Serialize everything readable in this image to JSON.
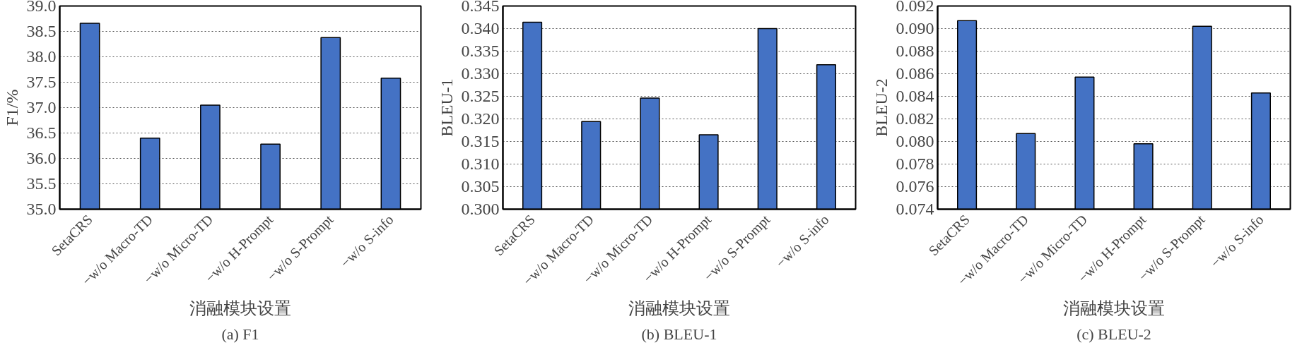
{
  "chart_data": [
    {
      "type": "bar",
      "ylabel": "F1/%",
      "xlabel": "消融模块设置",
      "annotations": [
        "(a) F1"
      ],
      "categories": [
        "SetaCRS",
        "−w/o Macro-TD",
        "−w/o Micro-TD",
        "−w/o H-Prompt",
        "−w/o S-Prompt",
        "−w/o S-info"
      ],
      "values": [
        38.66,
        36.4,
        37.05,
        36.28,
        38.38,
        37.58
      ],
      "color": "#4472c4",
      "ylim": [
        35.0,
        39.0
      ],
      "yticks": [
        {
          "value": 35.0,
          "label": "35.0"
        },
        35.5,
        {
          "value": 36.0,
          "label": "36.0"
        },
        36.5,
        {
          "value": 37.0,
          "label": "37.0"
        },
        37.5,
        {
          "value": 38.0,
          "label": "38.0"
        },
        38.5,
        {
          "value": 39.0,
          "label": "39.0"
        }
      ],
      "grid": "y"
    },
    {
      "type": "bar",
      "ylabel": "BLEU-1",
      "xlabel": "消融模块设置",
      "annotations": [
        "(b) BLEU-1"
      ],
      "categories": [
        "SetaCRS",
        "−w/o Macro-TD",
        "−w/o Micro-TD",
        "−w/o H-Prompt",
        "−w/o S-Prompt",
        "−w/o S-info"
      ],
      "values": [
        0.3414,
        0.3194,
        0.3246,
        0.3165,
        0.34,
        0.332
      ],
      "color": "#4472c4",
      "ylim": [
        0.3,
        0.345
      ],
      "yticks": [
        {
          "value": 0.3,
          "label": "0.300"
        },
        0.305,
        {
          "value": 0.31,
          "label": "0.310"
        },
        0.315,
        {
          "value": 0.32,
          "label": "0.320"
        },
        0.325,
        {
          "value": 0.33,
          "label": "0.330"
        },
        0.335,
        {
          "value": 0.34,
          "label": "0.340"
        },
        0.345
      ],
      "grid": "y"
    },
    {
      "type": "bar",
      "ylabel": "BLEU-2",
      "xlabel": "消融模块设置",
      "annotations": [
        "(c) BLEU-2"
      ],
      "categories": [
        "SetaCRS",
        "−w/o Macro-TD",
        "−w/o Micro-TD",
        "−w/o H-Prompt",
        "−w/o S-Prompt",
        "−w/o S-info"
      ],
      "values": [
        0.0907,
        0.0807,
        0.0857,
        0.0798,
        0.0902,
        0.0843
      ],
      "color": "#4472c4",
      "ylim": [
        0.074,
        0.092
      ],
      "yticks": [
        0.074,
        0.076,
        0.078,
        {
          "value": 0.08,
          "label": "0.080"
        },
        0.082,
        0.084,
        0.086,
        0.088,
        {
          "value": 0.09,
          "label": "0.090"
        },
        0.092
      ],
      "grid": "y"
    }
  ]
}
